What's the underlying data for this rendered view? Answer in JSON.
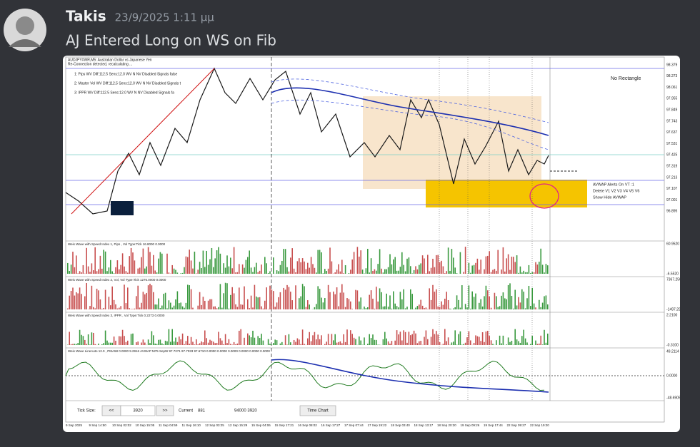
{
  "message": {
    "author": "Takis",
    "timestamp": "23/9/2025 1:11 μμ",
    "text": "AJ Entered Long on WS on Fib"
  },
  "chart_image": {
    "header": "AUDJPY#WR,M5: Australian Dollar vs Japanese Yen",
    "status": "Re-Connection detected, recalculating ...",
    "info_lines": [
      "1: Pips  WV Diff:112.5 Sens:12.0 WV N NV Disabled Signals false",
      "2: Master Vol WV Diff:112.5 Sens:12.0 WV N NV Disabled Signals t",
      "3: IPPR   WV Diff:112.5 Sens:12.0 WV N NV Disabled Signals fa"
    ],
    "note": "No Rectangle",
    "price_labels": [
      "98.379",
      "98.273",
      "98.061",
      "97.955",
      "97.849",
      "97.743",
      "97.637",
      "97.531",
      "97.425",
      "97.319",
      "97.213",
      "97.107",
      "97.001",
      "96.895"
    ],
    "avwap": [
      "AVWAP Alerts On  VT :1",
      "Delete   V1  V2  V3  V4  V5  V6",
      "Show   Hide AVWAP"
    ],
    "panels": [
      "Weis Wave with Speed Index 1, Pips , Vol Type:Tick 16.8000 0.0000",
      "Weis Wave with Speed Index 2, Vol, Vol Type:Tick 1276.0000 0.0000",
      "Weis Wave with Speed Index 3, IPPR , Vol Type:Tick 0.2273 0.0000",
      "Weis Wave LineAuto 12.0 , PMA58 0.0000 9.2916 AVWAP M75 SepW 97.7271 97.7033 97.6710 0.0000 0.0000 0.0000 0.0000 0.0000 0.0000"
    ],
    "panel_scales": [
      [
        "60.9520",
        "-6.5520"
      ],
      [
        "7367.2500",
        "-1497.2500"
      ],
      [
        "2.2100",
        "-0.3100"
      ],
      [
        "49.2114",
        "0.0000",
        "-48.6905"
      ]
    ],
    "controls": {
      "tick_size_label": "Tick Size:",
      "prev": "<<",
      "value": "3920",
      "next": ">>",
      "current_label": "Current",
      "current_value": "881",
      "counts": "94000  3920",
      "button": "Time Chart"
    },
    "dates": [
      "9 Sep 2025",
      "9 Sep 14:50",
      "10 Sep 02:02",
      "10 Sep 15:05",
      "11 Sep 04:59",
      "11 Sep 16:10",
      "12 Sep 03:25",
      "12 Sep 15:29",
      "15 Sep 04:06",
      "15 Sep 17:21",
      "16 Sep 08:02",
      "16 Sep 17:27",
      "17 Sep 07:44",
      "17 Sep 19:22",
      "18 Sep 03:40",
      "18 Sep 13:17",
      "18 Sep 20:30",
      "19 Sep 09:26",
      "19 Sep 17:44",
      "22 Sep 09:27",
      "22 Sep 19:20"
    ]
  }
}
